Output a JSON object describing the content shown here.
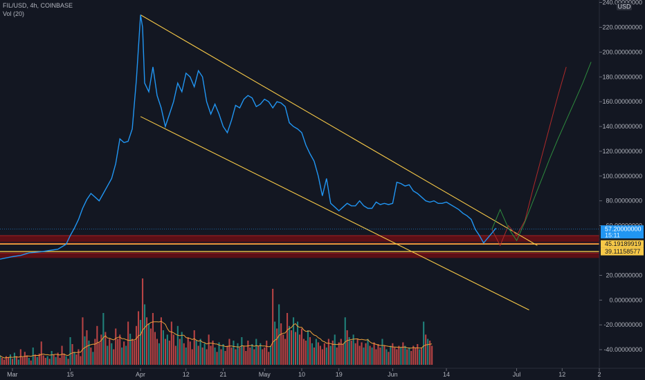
{
  "header": {
    "symbol_line": "FIL/USD, 4h, COINBASE",
    "volume_label": "Vol (20)"
  },
  "colors": {
    "background": "#131722",
    "price_line": "#2196f3",
    "trendline": "#f7c948",
    "support_fill": "#5c0f16",
    "volume_up": "#26a69a",
    "volume_down": "#ef5350",
    "volume_ma": "#f0a23a",
    "projection_red": "#b02a2a",
    "projection_green": "#2e8b3e"
  },
  "chart_data": {
    "type": "line",
    "title": "",
    "currency_badge": "USD",
    "ylim": [
      -55,
      242
    ],
    "y_ticks": [
      {
        "value": 240,
        "label": "240.00000000"
      },
      {
        "value": 220,
        "label": "220.00000000"
      },
      {
        "value": 200,
        "label": "200.00000000"
      },
      {
        "value": 180,
        "label": "180.00000000"
      },
      {
        "value": 160,
        "label": "160.00000000"
      },
      {
        "value": 140,
        "label": "140.00000000"
      },
      {
        "value": 120,
        "label": "120.00000000"
      },
      {
        "value": 100,
        "label": "100.00000000"
      },
      {
        "value": 80,
        "label": "80.00000000"
      },
      {
        "value": 60,
        "label": "60.00000000"
      },
      {
        "value": 20,
        "label": "20.00000000"
      },
      {
        "value": 0,
        "label": "0.00000000"
      },
      {
        "value": -20,
        "label": "-20.00000000"
      },
      {
        "value": -40,
        "label": "-40.00000000"
      }
    ],
    "x_ticks": [
      {
        "day": 1,
        "label": "Mar"
      },
      {
        "day": 15,
        "label": "15"
      },
      {
        "day": 32,
        "label": "Apr"
      },
      {
        "day": 43,
        "label": "12"
      },
      {
        "day": 52,
        "label": "21"
      },
      {
        "day": 62,
        "label": "May"
      },
      {
        "day": 71,
        "label": "10"
      },
      {
        "day": 80,
        "label": "19"
      },
      {
        "day": 93,
        "label": "Jun"
      },
      {
        "day": 106,
        "label": "14"
      },
      {
        "day": 123,
        "label": "Jul"
      },
      {
        "day": 134,
        "label": "12"
      },
      {
        "day": 143,
        "label": "2"
      }
    ],
    "xlim": [
      -2,
      143
    ],
    "series": [
      {
        "key": "price",
        "x": [
          -2,
          1,
          3,
          5,
          8,
          10,
          12,
          14,
          15,
          16,
          17,
          18,
          19,
          20,
          21,
          22,
          23,
          24,
          25,
          26,
          27,
          28,
          29,
          30,
          31,
          32,
          32.5,
          33,
          34,
          35,
          36,
          37,
          38,
          39,
          40,
          41,
          42,
          43,
          44,
          45,
          46,
          47,
          48,
          49,
          50,
          51,
          52,
          53,
          54,
          55,
          56,
          57,
          58,
          59,
          60,
          61,
          62,
          63,
          64,
          65,
          66,
          67,
          68,
          69,
          70,
          71,
          72,
          73,
          74,
          75,
          76,
          77,
          78,
          79,
          80,
          81,
          82,
          83,
          84,
          85,
          86,
          87,
          88,
          89,
          90,
          91,
          92,
          93,
          94,
          95,
          96,
          97,
          98,
          99,
          100,
          101,
          102,
          103,
          104,
          105,
          106,
          107,
          108,
          109,
          110,
          111,
          112,
          113,
          114,
          115,
          116,
          117,
          118
        ],
        "values": [
          33,
          35,
          36,
          38,
          39,
          40,
          41,
          45,
          52,
          58,
          65,
          74,
          81,
          86,
          83,
          80,
          86,
          92,
          98,
          110,
          130,
          127,
          128,
          138,
          178,
          230,
          220,
          175,
          168,
          188,
          165,
          155,
          140,
          150,
          160,
          175,
          168,
          183,
          180,
          172,
          185,
          180,
          160,
          150,
          158,
          150,
          140,
          135,
          145,
          157,
          155,
          162,
          165,
          163,
          156,
          158,
          162,
          160,
          155,
          160,
          159,
          156,
          143,
          140,
          138,
          135,
          125,
          118,
          112,
          100,
          84,
          98,
          78,
          75,
          72,
          75,
          78,
          76,
          76,
          80,
          76,
          74,
          74,
          79,
          77,
          78,
          77,
          78,
          95,
          94,
          92,
          93,
          88,
          86,
          83,
          80,
          79,
          80,
          78,
          78,
          79,
          77,
          75,
          73,
          70,
          68,
          65,
          57,
          52,
          46,
          50,
          54,
          58
        ]
      },
      {
        "key": "projection_red",
        "x": [
          117,
          119,
          121,
          123,
          125,
          127,
          129,
          131,
          133,
          135
        ],
        "values": [
          57,
          44,
          60,
          52,
          64,
          90,
          115,
          140,
          165,
          188
        ]
      },
      {
        "key": "projection_green",
        "x": [
          117,
          119,
          121,
          123,
          125,
          127,
          129,
          131,
          133,
          135,
          137,
          139,
          141
        ],
        "values": [
          57,
          73,
          58,
          48,
          63,
          80,
          97,
          114,
          130,
          145,
          160,
          175,
          192
        ]
      }
    ],
    "trendlines": [
      {
        "key": "upper",
        "x": [
          32,
          128
        ],
        "values": [
          230,
          44
        ]
      },
      {
        "key": "lower",
        "x": [
          32,
          126
        ],
        "values": [
          148,
          -8
        ]
      }
    ],
    "support_zones": [
      {
        "from": 47,
        "to": 52
      },
      {
        "from": 44.6,
        "to": 45.8
      },
      {
        "from": 34,
        "to": 38
      }
    ],
    "horizontal_lines": [
      {
        "value": 45.19189919,
        "label": "45.19189919"
      },
      {
        "value": 39.11158577,
        "label": "39.11158577"
      }
    ],
    "last_price": {
      "value": 57.2,
      "label": "57.20000000",
      "sub_label": "15:11"
    },
    "volume": {
      "label": "Vol (20)",
      "x_start": -2,
      "step": 0.5,
      "values": [
        0.11,
        0.08,
        0.06,
        0.1,
        0.09,
        0.12,
        0.07,
        0.14,
        0.1,
        0.06,
        0.18,
        0.09,
        0.15,
        0.11,
        0.08,
        0.05,
        0.2,
        0.12,
        0.09,
        0.13,
        0.27,
        0.11,
        0.08,
        0.1,
        0.07,
        0.16,
        0.12,
        0.09,
        0.14,
        0.08,
        0.22,
        0.13,
        0.1,
        0.07,
        0.32,
        0.24,
        0.15,
        0.12,
        0.18,
        0.1,
        0.55,
        0.33,
        0.4,
        0.28,
        0.2,
        0.15,
        0.3,
        0.45,
        0.26,
        0.35,
        0.6,
        0.38,
        0.22,
        0.3,
        0.25,
        0.18,
        0.42,
        0.3,
        0.35,
        0.2,
        0.27,
        0.22,
        0.5,
        0.36,
        0.3,
        0.28,
        0.45,
        0.62,
        0.52,
        1.0,
        0.7,
        0.55,
        0.48,
        0.42,
        0.6,
        0.38,
        0.3,
        0.25,
        0.55,
        0.4,
        0.3,
        0.35,
        0.28,
        0.5,
        0.35,
        0.22,
        0.45,
        0.3,
        0.38,
        0.25,
        0.2,
        0.32,
        0.27,
        0.18,
        0.4,
        0.28,
        0.22,
        0.3,
        0.2,
        0.25,
        0.18,
        0.35,
        0.22,
        0.28,
        0.2,
        0.15,
        0.26,
        0.18,
        0.24,
        0.16,
        0.22,
        0.3,
        0.2,
        0.28,
        0.18,
        0.25,
        0.2,
        0.32,
        0.22,
        0.16,
        0.28,
        0.2,
        0.24,
        0.18,
        0.3,
        0.22,
        0.25,
        0.18,
        0.2,
        0.28,
        0.15,
        0.22,
        0.88,
        0.5,
        0.42,
        0.7,
        0.48,
        0.35,
        0.3,
        0.6,
        0.45,
        0.4,
        0.55,
        0.38,
        0.5,
        0.35,
        0.42,
        0.3,
        0.28,
        0.4,
        0.32,
        0.25,
        0.2,
        0.3,
        0.26,
        0.22,
        0.18,
        0.25,
        0.2,
        0.3,
        0.22,
        0.28,
        0.35,
        0.2,
        0.26,
        0.3,
        0.24,
        0.55,
        0.4,
        0.32,
        0.28,
        0.35,
        0.25,
        0.3,
        0.22,
        0.26,
        0.2,
        0.25,
        0.3,
        0.22,
        0.2,
        0.26,
        0.18,
        0.24,
        0.2,
        0.3,
        0.22,
        0.18,
        0.15,
        0.22,
        0.25,
        0.2,
        0.18,
        0.22,
        0.2,
        0.26,
        0.22,
        0.18,
        0.2,
        0.16,
        0.22,
        0.2,
        0.24,
        0.18,
        0.2,
        0.5,
        0.35,
        0.3,
        0.28,
        0.22
      ]
    }
  }
}
